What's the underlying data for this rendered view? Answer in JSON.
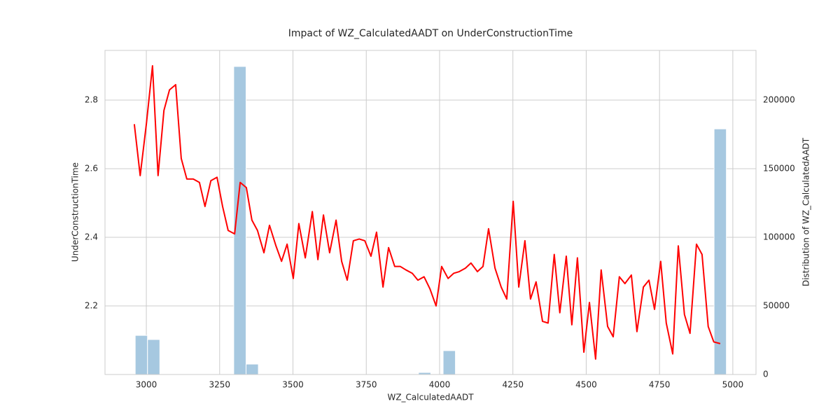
{
  "chart_data": {
    "title": "Impact of WZ_CalculatedAADT on UnderConstructionTime",
    "xlabel": "WZ_CalculatedAADT",
    "ylabel": "UnderConstructionTime",
    "y2label": "Distribution of WZ_CalculatedAADT",
    "xlim": [
      2859,
      5079
    ],
    "ylim": [
      2.0,
      2.945
    ],
    "y2lim": [
      0,
      236200
    ],
    "xticks": [
      3000,
      3250,
      3500,
      3750,
      4000,
      4250,
      4500,
      4750,
      5000
    ],
    "yticks": [
      2.2,
      2.4,
      2.6,
      2.8
    ],
    "y2ticks": [
      0,
      50000,
      100000,
      150000,
      200000
    ],
    "grid": true,
    "layers": [
      {
        "type": "histogram",
        "axis": "y2",
        "color": "#a6c8e0",
        "bins": [
          2962,
          3004,
          3046,
          3088,
          3130,
          3172,
          3214,
          3256,
          3298,
          3340,
          3382,
          3424,
          3466,
          3508,
          3550,
          3592,
          3634,
          3676,
          3718,
          3760,
          3802,
          3844,
          3886,
          3928,
          3970,
          4012,
          4054,
          4096,
          4138,
          4180,
          4222,
          4264,
          4306,
          4348,
          4390,
          4432,
          4474,
          4516,
          4558,
          4600,
          4642,
          4684,
          4726,
          4768,
          4810,
          4852,
          4894,
          4936,
          4978
        ],
        "counts": [
          28500,
          25500,
          0,
          0,
          0,
          0,
          0,
          0,
          224500,
          7600,
          0,
          0,
          0,
          0,
          0,
          0,
          0,
          0,
          0,
          0,
          0,
          0,
          0,
          1500,
          0,
          17400,
          0,
          0,
          0,
          0,
          0,
          0,
          0,
          0,
          0,
          0,
          0,
          0,
          0,
          0,
          0,
          0,
          0,
          0,
          0,
          0,
          0,
          179000
        ]
      },
      {
        "type": "line",
        "color": "#ff0000",
        "x": [
          2959,
          2979,
          3000,
          3021,
          3040,
          3060,
          3079,
          3100,
          3119,
          3138,
          3160,
          3181,
          3200,
          3220,
          3241,
          3260,
          3279,
          3301,
          3320,
          3341,
          3360,
          3379,
          3401,
          3420,
          3442,
          3461,
          3480,
          3501,
          3520,
          3542,
          3566,
          3585,
          3604,
          3625,
          3647,
          3666,
          3685,
          3706,
          3726,
          3745,
          3766,
          3785,
          3807,
          3826,
          3847,
          3866,
          3885,
          3907,
          3926,
          3947,
          3967,
          3988,
          4007,
          4029,
          4048,
          4067,
          4088,
          4107,
          4129,
          4148,
          4167,
          4189,
          4210,
          4229,
          4251,
          4270,
          4291,
          4310,
          4329,
          4351,
          4370,
          4391,
          4410,
          4432,
          4451,
          4470,
          4492,
          4511,
          4532,
          4551,
          4573,
          4592,
          4613,
          4632,
          4654,
          4673,
          4695,
          4714,
          4733,
          4754,
          4773,
          4795,
          4814,
          4835,
          4854,
          4876,
          4895,
          4916,
          4935,
          4957
        ],
        "values": [
          2.73,
          2.58,
          2.73,
          2.9,
          2.58,
          2.77,
          2.83,
          2.845,
          2.63,
          2.57,
          2.57,
          2.56,
          2.49,
          2.565,
          2.575,
          2.49,
          2.42,
          2.41,
          2.56,
          2.545,
          2.45,
          2.42,
          2.355,
          2.435,
          2.375,
          2.33,
          2.38,
          2.28,
          2.44,
          2.34,
          2.475,
          2.335,
          2.465,
          2.355,
          2.45,
          2.33,
          2.275,
          2.39,
          2.395,
          2.39,
          2.345,
          2.415,
          2.255,
          2.37,
          2.315,
          2.315,
          2.305,
          2.295,
          2.275,
          2.285,
          2.25,
          2.2,
          2.315,
          2.28,
          2.295,
          2.3,
          2.31,
          2.325,
          2.3,
          2.315,
          2.425,
          2.31,
          2.255,
          2.22,
          2.505,
          2.255,
          2.39,
          2.22,
          2.27,
          2.155,
          2.15,
          2.35,
          2.18,
          2.345,
          2.145,
          2.34,
          2.065,
          2.21,
          2.045,
          2.305,
          2.14,
          2.11,
          2.285,
          2.265,
          2.29,
          2.125,
          2.255,
          2.275,
          2.19,
          2.33,
          2.15,
          2.06,
          2.375,
          2.175,
          2.12,
          2.38,
          2.35,
          2.14,
          2.095,
          2.09
        ]
      }
    ]
  }
}
